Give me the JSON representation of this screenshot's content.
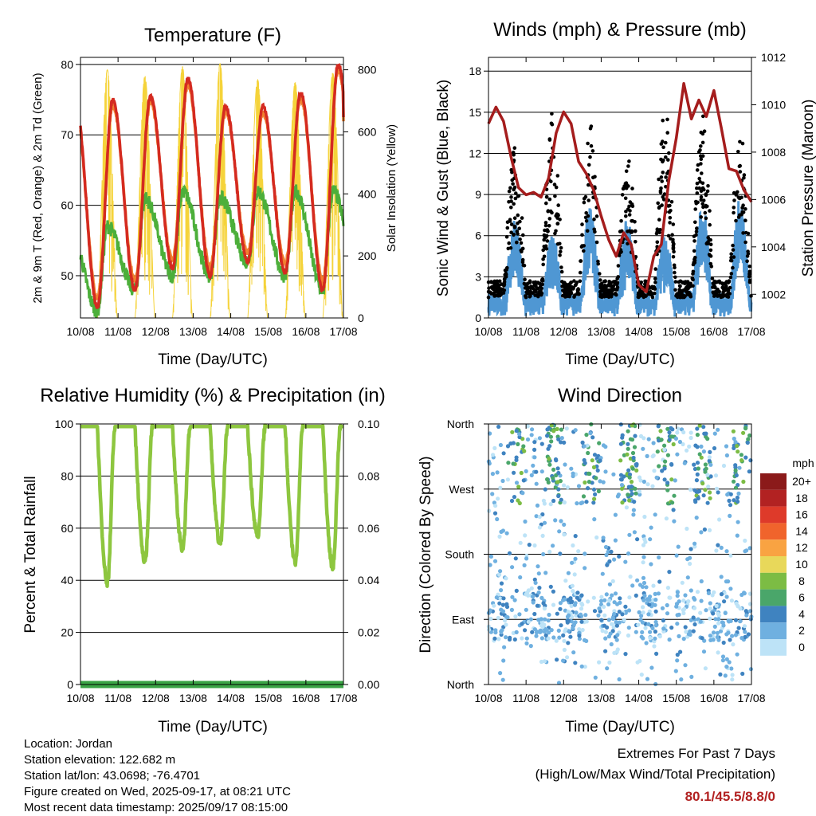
{
  "titles": {
    "temperature": "Temperature (F)",
    "winds": "Winds (mph) & Pressure (mb)",
    "humidity": "Relative Humidity (%) & Precipitation (in)",
    "direction": "Wind Direction"
  },
  "axis_labels": {
    "time": "Time (Day/UTC)",
    "temp_left": "2m & 9m T (Red, Orange) & 2m Td (Green)",
    "temp_right": "Solar Insolation (Yellow)",
    "wind_left": "Sonic Wind & Gust (Blue, Black)",
    "wind_right": "Station Pressure (Maroon)",
    "rh_left": "Percent & Total Rainfall",
    "dir_left": "Direction (Colored By Speed)"
  },
  "info": {
    "location": "Location: Jordan",
    "elevation": "Station elevation: 122.682 m",
    "latlon": "Station lat/lon: 43.0698; -76.4701",
    "created": "Figure created on Wed, 2025-09-17, at 08:21 UTC",
    "recent": "Most recent data timestamp: 2025/09/17 08:15:00"
  },
  "extremes": {
    "heading": "Extremes For Past 7 Days",
    "subheading": "(High/Low/Max Wind/Total Precipitation)",
    "values": "80.1/45.5/8.8/0"
  },
  "speed_legend": {
    "unit": "mph",
    "labels": [
      "20+",
      "18",
      "16",
      "14",
      "12",
      "10",
      "8",
      "6",
      "4",
      "2",
      "0"
    ],
    "colors": [
      "#8b1a1a",
      "#b22222",
      "#de3a2a",
      "#f0642c",
      "#f9a342",
      "#e8d85a",
      "#7cbc44",
      "#4aa66a",
      "#3f83c0",
      "#6fb0e0",
      "#bde3f7"
    ]
  },
  "chart_data": [
    {
      "type": "line",
      "title": "Temperature (F)",
      "xlabel": "Time (Day/UTC)",
      "ylabel": "2m & 9m T (Red, Orange) & 2m Td (Green)",
      "y2label": "Solar Insolation (Yellow)",
      "x_ticks": [
        "10/08",
        "11/08",
        "12/08",
        "13/08",
        "14/08",
        "15/08",
        "16/08",
        "17/08"
      ],
      "xlim": [
        0,
        7
      ],
      "ylim": [
        44,
        81
      ],
      "y_ticks": [
        50,
        60,
        70,
        80
      ],
      "y2lim": [
        0,
        840
      ],
      "y2_ticks": [
        0,
        200,
        400,
        600,
        800
      ],
      "daily_max": [
        75,
        75.5,
        78,
        74,
        74,
        76,
        80.1
      ],
      "daily_min": [
        45.5,
        48,
        51,
        50,
        52,
        50.5,
        48
      ],
      "dew_max": [
        57,
        61,
        62,
        61,
        62,
        62,
        62
      ],
      "dew_min": [
        45,
        48,
        50,
        50,
        52,
        50,
        48
      ],
      "solar_peak": [
        800,
        780,
        810,
        820,
        770,
        760,
        790
      ],
      "colors": {
        "t2m": "#d42a20",
        "t9m": "#f08030",
        "td": "#4caf3a",
        "solar": "#f5d33a"
      }
    },
    {
      "type": "line",
      "title": "Winds (mph) & Pressure (mb)",
      "xlabel": "Time (Day/UTC)",
      "ylabel": "Sonic Wind & Gust (Blue, Black)",
      "y2label": "Station Pressure (Maroon)",
      "x_ticks": [
        "10/08",
        "11/08",
        "12/08",
        "13/08",
        "14/08",
        "15/08",
        "16/08",
        "17/08"
      ],
      "xlim": [
        0,
        7
      ],
      "ylim": [
        0,
        19
      ],
      "y_ticks": [
        0,
        3,
        6,
        9,
        12,
        15,
        18
      ],
      "y2lim": [
        1001,
        1012
      ],
      "y2_ticks": [
        1002,
        1004,
        1006,
        1008,
        1010,
        1012
      ],
      "pressure": {
        "x": [
          0,
          0.2,
          0.4,
          0.6,
          0.8,
          1.0,
          1.2,
          1.4,
          1.6,
          1.8,
          2.0,
          2.2,
          2.4,
          2.6,
          2.8,
          3.0,
          3.2,
          3.4,
          3.6,
          3.8,
          4.0,
          4.2,
          4.4,
          4.6,
          4.8,
          5.0,
          5.2,
          5.4,
          5.6,
          5.8,
          6.0,
          6.2,
          6.4,
          6.6,
          6.8,
          7.0
        ],
        "y": [
          1009.2,
          1009.9,
          1009.3,
          1007.8,
          1006.5,
          1006.2,
          1006.3,
          1006.1,
          1006.9,
          1008.8,
          1009.7,
          1009.2,
          1007.6,
          1007.1,
          1006.4,
          1005.3,
          1004.3,
          1003.6,
          1004.6,
          1004.1,
          1002.4,
          1002.1,
          1003.6,
          1004.1,
          1006.8,
          1008.6,
          1010.9,
          1009.4,
          1010.2,
          1009.5,
          1010.6,
          1009.0,
          1007.3,
          1007.2,
          1006.4,
          1005.9
        ]
      },
      "wind_daily_peak": [
        7,
        6,
        8,
        7,
        6,
        8,
        8.8
      ],
      "gust_daily_peak": [
        13,
        14.5,
        14.5,
        12,
        15,
        14.5,
        14
      ],
      "colors": {
        "wind": "#4f97d3",
        "gust": "#000000",
        "pressure": "#a51d1d"
      }
    },
    {
      "type": "line",
      "title": "Relative Humidity (%) & Precipitation (in)",
      "xlabel": "Time (Day/UTC)",
      "ylabel": "Percent & Total Rainfall",
      "x_ticks": [
        "10/08",
        "11/08",
        "12/08",
        "13/08",
        "14/08",
        "15/08",
        "16/08",
        "17/08"
      ],
      "xlim": [
        0,
        7
      ],
      "ylim": [
        0,
        100
      ],
      "y_ticks": [
        0,
        20,
        40,
        60,
        80,
        100
      ],
      "y2lim": [
        0,
        0.1
      ],
      "y2_ticks": [
        "0.00",
        "0.02",
        "0.04",
        "0.06",
        "0.08",
        "0.10"
      ],
      "daily_rh_min": [
        39,
        47,
        52,
        54,
        57,
        47,
        45
      ],
      "total_precip": 0,
      "colors": {
        "rh": "#8dc63f",
        "precip": "#3aa345"
      }
    },
    {
      "type": "scatter",
      "title": "Wind Direction",
      "xlabel": "Time (Day/UTC)",
      "ylabel": "Direction (Colored By Speed)",
      "x_ticks": [
        "10/08",
        "11/08",
        "12/08",
        "13/08",
        "14/08",
        "15/08",
        "16/08",
        "17/08"
      ],
      "xlim": [
        0,
        7
      ],
      "y_ticks": [
        "North",
        "East",
        "South",
        "West",
        "North"
      ],
      "ylim": [
        0,
        360
      ],
      "color_key": "speed (mph)"
    }
  ]
}
